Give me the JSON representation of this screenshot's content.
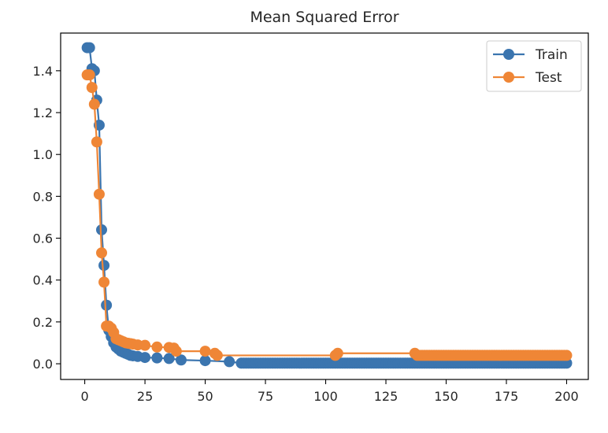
{
  "chart_data": {
    "type": "line",
    "title": "Mean Squared Error",
    "xlabel": "",
    "ylabel": "",
    "xlim": [
      -10,
      209
    ],
    "ylim": [
      -0.075,
      1.58
    ],
    "xticks": [
      0,
      25,
      50,
      75,
      100,
      125,
      150,
      175,
      200
    ],
    "yticks": [
      0.0,
      0.2,
      0.4,
      0.6,
      0.8,
      1.0,
      1.2,
      1.4
    ],
    "grid": false,
    "legend": "top-right",
    "series": [
      {
        "name": "Train",
        "color": "#3b75af",
        "marker": "circle",
        "head": [
          [
            1,
            1.51
          ],
          [
            2,
            1.51
          ],
          [
            3,
            1.41
          ],
          [
            4,
            1.4
          ],
          [
            5,
            1.26
          ],
          [
            6,
            1.14
          ],
          [
            7,
            0.64
          ],
          [
            8,
            0.47
          ],
          [
            9,
            0.28
          ],
          [
            10,
            0.16
          ],
          [
            11,
            0.13
          ],
          [
            12,
            0.1
          ],
          [
            13,
            0.08
          ],
          [
            14,
            0.07
          ],
          [
            15,
            0.06
          ],
          [
            16,
            0.055
          ],
          [
            17,
            0.05
          ],
          [
            18,
            0.045
          ],
          [
            19,
            0.04
          ],
          [
            20,
            0.038
          ],
          [
            22,
            0.035
          ],
          [
            25,
            0.03
          ],
          [
            30,
            0.028
          ],
          [
            35,
            0.025
          ],
          [
            40,
            0.018
          ],
          [
            50,
            0.015
          ],
          [
            60,
            0.01
          ],
          [
            65,
            0.003
          ]
        ],
        "tail_from": 66,
        "tail_to": 200,
        "tail_value": 0.003
      },
      {
        "name": "Test",
        "color": "#ef8636",
        "marker": "circle",
        "head": [
          [
            1,
            1.38
          ],
          [
            2,
            1.38
          ],
          [
            3,
            1.32
          ],
          [
            4,
            1.24
          ],
          [
            5,
            1.06
          ],
          [
            6,
            0.81
          ],
          [
            7,
            0.53
          ],
          [
            8,
            0.39
          ],
          [
            9,
            0.18
          ],
          [
            10,
            0.18
          ],
          [
            11,
            0.17
          ],
          [
            12,
            0.15
          ],
          [
            13,
            0.12
          ],
          [
            14,
            0.115
          ],
          [
            15,
            0.11
          ],
          [
            16,
            0.105
          ],
          [
            17,
            0.1
          ],
          [
            18,
            0.098
          ],
          [
            19,
            0.096
          ],
          [
            20,
            0.094
          ],
          [
            22,
            0.09
          ],
          [
            25,
            0.088
          ],
          [
            30,
            0.08
          ],
          [
            35,
            0.078
          ],
          [
            37,
            0.075
          ],
          [
            38,
            0.06
          ],
          [
            50,
            0.06
          ],
          [
            54,
            0.05
          ],
          [
            55,
            0.04
          ],
          [
            104,
            0.04
          ],
          [
            105,
            0.05
          ],
          [
            137,
            0.05
          ],
          [
            138,
            0.04
          ]
        ],
        "tail_from": 139,
        "tail_to": 200,
        "tail_value": 0.04
      }
    ]
  }
}
